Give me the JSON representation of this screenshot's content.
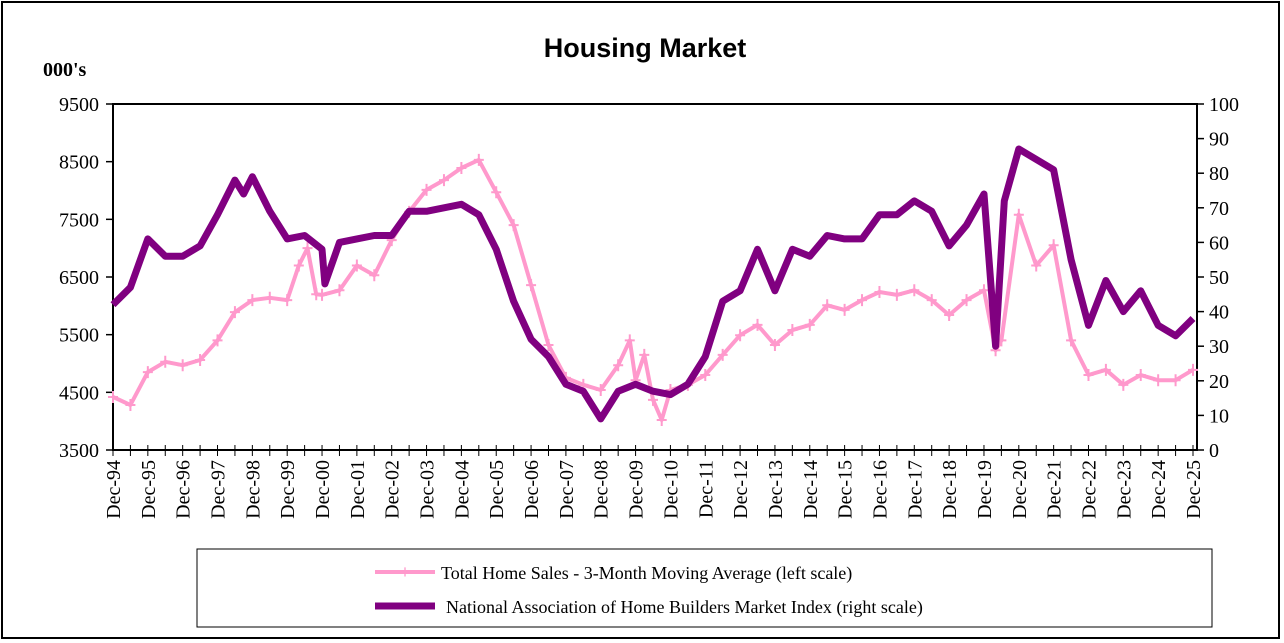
{
  "chart_data": {
    "type": "line",
    "title": "Housing Market",
    "ylabel_left": "000's",
    "left_axis": {
      "min": 3500,
      "max": 9500,
      "step": 1000,
      "ticks": [
        "3500",
        "4500",
        "5500",
        "6500",
        "7500",
        "8500",
        "9500"
      ]
    },
    "right_axis": {
      "min": 0,
      "max": 100,
      "step": 10,
      "ticks": [
        "0",
        "10",
        "20",
        "30",
        "40",
        "50",
        "60",
        "70",
        "80",
        "90",
        "100"
      ]
    },
    "x_range": [
      "1994-12",
      "2025-12"
    ],
    "x_tick_labels": [
      "Dec-94",
      "Dec-95",
      "Dec-96",
      "Dec-97",
      "Dec-98",
      "Dec-99",
      "Dec-00",
      "Dec-01",
      "Dec-02",
      "Dec-03",
      "Dec-04",
      "Dec-05",
      "Dec-06",
      "Dec-07",
      "Dec-08",
      "Dec-09",
      "Dec-10",
      "Dec-11",
      "Dec-12",
      "Dec-13",
      "Dec-14",
      "Dec-15",
      "Dec-16",
      "Dec-17",
      "Dec-18",
      "Dec-19",
      "Dec-20",
      "Dec-21",
      "Dec-22",
      "Dec-23",
      "Dec-24",
      "Dec-25"
    ],
    "grid": false,
    "legend_position": "bottom",
    "series": [
      {
        "name": "Total Home Sales - 3-Month Moving Average (left scale)",
        "axis": "left",
        "color": "#ff99cc",
        "marker": "plus",
        "points": [
          [
            "1994-12",
            4420
          ],
          [
            "1995-06",
            4280
          ],
          [
            "1995-12",
            4850
          ],
          [
            "1996-06",
            5030
          ],
          [
            "1996-12",
            4970
          ],
          [
            "1997-06",
            5060
          ],
          [
            "1997-12",
            5400
          ],
          [
            "1998-06",
            5890
          ],
          [
            "1998-12",
            6100
          ],
          [
            "1999-06",
            6140
          ],
          [
            "1999-12",
            6100
          ],
          [
            "2000-04",
            6700
          ],
          [
            "2000-07",
            7000
          ],
          [
            "2000-10",
            6200
          ],
          [
            "2000-12",
            6190
          ],
          [
            "2001-06",
            6270
          ],
          [
            "2001-12",
            6700
          ],
          [
            "2002-06",
            6530
          ],
          [
            "2002-12",
            7140
          ],
          [
            "2003-06",
            7630
          ],
          [
            "2003-12",
            8010
          ],
          [
            "2004-06",
            8180
          ],
          [
            "2004-12",
            8390
          ],
          [
            "2005-06",
            8530
          ],
          [
            "2005-12",
            7970
          ],
          [
            "2006-06",
            7400
          ],
          [
            "2006-12",
            6360
          ],
          [
            "2007-06",
            5320
          ],
          [
            "2007-12",
            4750
          ],
          [
            "2008-06",
            4630
          ],
          [
            "2008-12",
            4540
          ],
          [
            "2009-06",
            4970
          ],
          [
            "2009-10",
            5400
          ],
          [
            "2009-12",
            4710
          ],
          [
            "2010-03",
            5150
          ],
          [
            "2010-06",
            4370
          ],
          [
            "2010-09",
            4020
          ],
          [
            "2010-12",
            4540
          ],
          [
            "2011-06",
            4630
          ],
          [
            "2011-12",
            4800
          ],
          [
            "2012-06",
            5150
          ],
          [
            "2012-12",
            5490
          ],
          [
            "2013-06",
            5670
          ],
          [
            "2013-12",
            5320
          ],
          [
            "2014-06",
            5580
          ],
          [
            "2014-12",
            5670
          ],
          [
            "2015-06",
            6010
          ],
          [
            "2015-12",
            5930
          ],
          [
            "2016-06",
            6100
          ],
          [
            "2016-12",
            6240
          ],
          [
            "2017-06",
            6190
          ],
          [
            "2017-12",
            6270
          ],
          [
            "2018-06",
            6100
          ],
          [
            "2018-12",
            5840
          ],
          [
            "2019-06",
            6100
          ],
          [
            "2019-12",
            6270
          ],
          [
            "2020-04",
            5230
          ],
          [
            "2020-06",
            5400
          ],
          [
            "2020-12",
            7580
          ],
          [
            "2021-06",
            6700
          ],
          [
            "2021-12",
            7050
          ],
          [
            "2022-06",
            5400
          ],
          [
            "2022-12",
            4800
          ],
          [
            "2023-06",
            4890
          ],
          [
            "2023-12",
            4630
          ],
          [
            "2024-06",
            4800
          ],
          [
            "2024-12",
            4710
          ],
          [
            "2025-06",
            4710
          ],
          [
            "2025-12",
            4890
          ]
        ]
      },
      {
        "name": "National Association of Home Builders Market Index (right scale)",
        "axis": "right",
        "color": "#800080",
        "marker": "none",
        "points": [
          [
            "1994-12",
            42
          ],
          [
            "1995-06",
            47
          ],
          [
            "1995-12",
            61
          ],
          [
            "1996-06",
            56
          ],
          [
            "1996-12",
            56
          ],
          [
            "1997-06",
            59
          ],
          [
            "1997-12",
            68
          ],
          [
            "1998-06",
            78
          ],
          [
            "1998-09",
            74
          ],
          [
            "1998-12",
            79
          ],
          [
            "1999-06",
            69
          ],
          [
            "1999-12",
            61
          ],
          [
            "2000-06",
            62
          ],
          [
            "2000-12",
            58
          ],
          [
            "2001-01",
            48
          ],
          [
            "2001-06",
            60
          ],
          [
            "2001-12",
            61
          ],
          [
            "2002-06",
            62
          ],
          [
            "2002-12",
            62
          ],
          [
            "2003-06",
            69
          ],
          [
            "2003-12",
            69
          ],
          [
            "2004-06",
            70
          ],
          [
            "2004-12",
            71
          ],
          [
            "2005-06",
            68
          ],
          [
            "2005-12",
            58
          ],
          [
            "2006-06",
            43
          ],
          [
            "2006-12",
            32
          ],
          [
            "2007-06",
            27
          ],
          [
            "2007-12",
            19
          ],
          [
            "2008-06",
            17
          ],
          [
            "2008-12",
            9
          ],
          [
            "2009-06",
            17
          ],
          [
            "2009-12",
            19
          ],
          [
            "2010-06",
            17
          ],
          [
            "2010-12",
            16
          ],
          [
            "2011-06",
            19
          ],
          [
            "2011-12",
            27
          ],
          [
            "2012-06",
            43
          ],
          [
            "2012-12",
            46
          ],
          [
            "2013-06",
            58
          ],
          [
            "2013-12",
            46
          ],
          [
            "2014-06",
            58
          ],
          [
            "2014-12",
            56
          ],
          [
            "2015-06",
            62
          ],
          [
            "2015-12",
            61
          ],
          [
            "2016-06",
            61
          ],
          [
            "2016-12",
            68
          ],
          [
            "2017-06",
            68
          ],
          [
            "2017-12",
            72
          ],
          [
            "2018-06",
            69
          ],
          [
            "2018-12",
            59
          ],
          [
            "2019-06",
            65
          ],
          [
            "2019-12",
            74
          ],
          [
            "2020-04",
            30
          ],
          [
            "2020-07",
            72
          ],
          [
            "2020-12",
            87
          ],
          [
            "2021-06",
            84
          ],
          [
            "2021-12",
            81
          ],
          [
            "2022-06",
            55
          ],
          [
            "2022-12",
            36
          ],
          [
            "2023-06",
            49
          ],
          [
            "2023-12",
            40
          ],
          [
            "2024-06",
            46
          ],
          [
            "2024-12",
            36
          ],
          [
            "2025-06",
            33
          ],
          [
            "2025-12",
            38
          ]
        ]
      }
    ]
  }
}
